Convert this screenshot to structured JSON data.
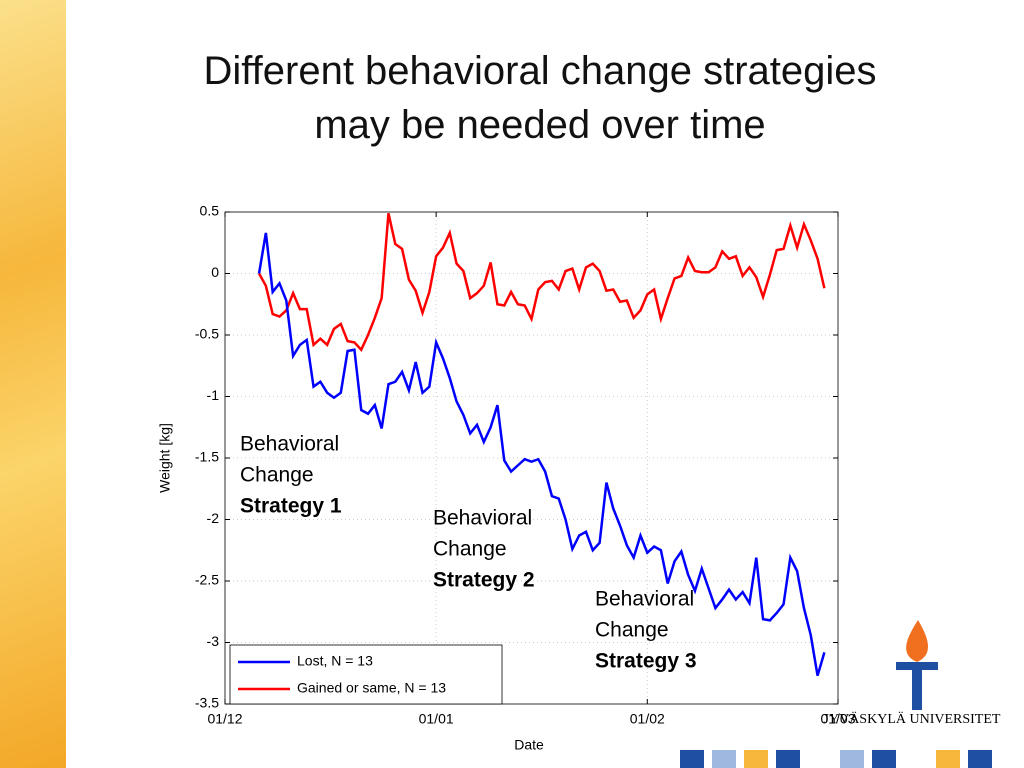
{
  "title_lines": [
    "Different behavioral change strategies",
    "may be needed over time"
  ],
  "logo_text": "JYVÄSKYLÄ UNIVERSITET",
  "chart_data": {
    "type": "line",
    "xlabel": "Date",
    "ylabel": "Weight [kg]",
    "x": [
      5,
      6,
      7,
      8,
      9,
      10,
      11,
      12,
      13,
      14,
      15,
      16,
      17,
      18,
      19,
      20,
      21,
      22,
      23,
      24,
      25,
      26,
      27,
      28,
      29,
      30,
      31,
      32,
      33,
      34,
      35,
      36,
      37,
      38,
      39,
      40,
      41,
      42,
      43,
      44,
      45,
      46,
      47,
      48,
      49,
      50,
      51,
      52,
      53,
      54,
      55,
      56,
      57,
      58,
      59,
      60,
      61,
      62,
      63,
      64,
      65,
      66,
      67,
      68,
      69,
      70,
      71,
      72,
      73,
      74,
      75,
      76,
      77,
      78,
      79,
      80,
      81,
      82,
      83,
      84,
      85,
      86,
      87,
      88
    ],
    "series": [
      {
        "name": "Lost, N = 13",
        "color": "#0000ff",
        "values": [
          0,
          0.33,
          -0.15,
          -0.08,
          -0.22,
          -0.67,
          -0.58,
          -0.54,
          -0.92,
          -0.88,
          -0.97,
          -1.01,
          -0.97,
          -0.63,
          -0.62,
          -1.11,
          -1.14,
          -1.07,
          -1.26,
          -0.9,
          -0.88,
          -0.8,
          -0.95,
          -0.72,
          -0.97,
          -0.92,
          -0.56,
          -0.69,
          -0.85,
          -1.04,
          -1.15,
          -1.3,
          -1.23,
          -1.37,
          -1.25,
          -1.07,
          -1.52,
          -1.61,
          -1.56,
          -1.51,
          -1.53,
          -1.51,
          -1.61,
          -1.81,
          -1.83,
          -2.0,
          -2.24,
          -2.13,
          -2.1,
          -2.25,
          -2.19,
          -1.7,
          -1.91,
          -2.05,
          -2.21,
          -2.31,
          -2.13,
          -2.27,
          -2.22,
          -2.25,
          -2.52,
          -2.34,
          -2.26,
          -2.45,
          -2.58,
          -2.4,
          -2.56,
          -2.72,
          -2.65,
          -2.57,
          -2.65,
          -2.59,
          -2.68,
          -2.31,
          -2.81,
          -2.82,
          -2.76,
          -2.69,
          -2.31,
          -2.42,
          -2.72,
          -2.94,
          -3.27,
          -3.08
        ]
      },
      {
        "name": "Gained or same, N = 13",
        "color": "#ff0000",
        "values": [
          0,
          -0.1,
          -0.33,
          -0.35,
          -0.3,
          -0.16,
          -0.29,
          -0.29,
          -0.58,
          -0.53,
          -0.58,
          -0.45,
          -0.41,
          -0.55,
          -0.56,
          -0.62,
          -0.5,
          -0.36,
          -0.2,
          0.49,
          0.24,
          0.2,
          -0.05,
          -0.14,
          -0.32,
          -0.15,
          0.14,
          0.21,
          0.33,
          0.08,
          0.02,
          -0.2,
          -0.16,
          -0.1,
          0.09,
          -0.25,
          -0.26,
          -0.15,
          -0.25,
          -0.26,
          -0.37,
          -0.13,
          -0.07,
          -0.06,
          -0.13,
          0.02,
          0.04,
          -0.13,
          0.05,
          0.08,
          0.02,
          -0.14,
          -0.13,
          -0.23,
          -0.22,
          -0.36,
          -0.3,
          -0.17,
          -0.13,
          -0.37,
          -0.2,
          -0.04,
          -0.02,
          0.13,
          0.02,
          0.01,
          0.01,
          0.05,
          0.18,
          0.12,
          0.14,
          -0.02,
          0.05,
          -0.03,
          -0.19,
          -0.01,
          0.19,
          0.2,
          0.39,
          0.21,
          0.4,
          0.27,
          0.12,
          -0.12
        ]
      }
    ],
    "xlim": [
      0,
      90
    ],
    "xticks": [
      {
        "value": 0,
        "label": "01/12"
      },
      {
        "value": 31,
        "label": "01/01"
      },
      {
        "value": 62,
        "label": "01/02"
      },
      {
        "value": 90,
        "label": "01/03"
      }
    ],
    "ylim": [
      -3.5,
      0.5
    ],
    "yticks": [
      0.5,
      0,
      -0.5,
      -1,
      -1.5,
      -2,
      -2.5,
      -3,
      -3.5
    ],
    "grid": true,
    "legend": "lower left",
    "annotations": [
      {
        "lines": [
          "Behavioral",
          "Change",
          "Strategy 1"
        ]
      },
      {
        "lines": [
          "Behavioral",
          "Change",
          "Strategy 2"
        ]
      },
      {
        "lines": [
          "Behavioral",
          "Change",
          "Strategy 3"
        ]
      }
    ]
  }
}
